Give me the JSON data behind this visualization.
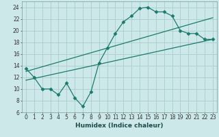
{
  "xlabel": "Humidex (Indice chaleur)",
  "bg_color": "#cde8e8",
  "grid_color": "#aacccc",
  "line_color": "#1a7a6e",
  "xlim": [
    -0.5,
    23.5
  ],
  "ylim": [
    6,
    25
  ],
  "yticks": [
    6,
    8,
    10,
    12,
    14,
    16,
    18,
    20,
    22,
    24
  ],
  "xticks": [
    0,
    1,
    2,
    3,
    4,
    5,
    6,
    7,
    8,
    9,
    10,
    11,
    12,
    13,
    14,
    15,
    16,
    17,
    18,
    19,
    20,
    21,
    22,
    23
  ],
  "xtick_labels": [
    "0",
    "1",
    "2",
    "3",
    "4",
    "5",
    "6",
    "7",
    "8",
    "9",
    "10",
    "11",
    "12",
    "13",
    "14",
    "15",
    "16",
    "17",
    "18",
    "19",
    "20",
    "21",
    "22",
    "23"
  ],
  "line1_x": [
    0,
    1,
    2,
    3,
    4,
    5,
    6,
    7,
    8,
    9,
    10,
    11,
    12,
    13,
    14,
    15,
    16,
    17,
    18,
    19,
    20,
    21,
    22,
    23
  ],
  "line1_y": [
    13.5,
    12.0,
    10.0,
    10.0,
    9.0,
    11.0,
    8.5,
    7.0,
    9.5,
    14.5,
    17.0,
    19.5,
    21.5,
    22.5,
    23.8,
    24.0,
    23.2,
    23.2,
    22.5,
    20.0,
    19.5,
    19.5,
    18.5,
    18.5
  ],
  "line2_x": [
    0,
    23
  ],
  "line2_y": [
    13.0,
    22.2
  ],
  "line3_x": [
    0,
    23
  ],
  "line3_y": [
    11.5,
    18.5
  ],
  "tick_fontsize": 5.5,
  "xlabel_fontsize": 6.5
}
